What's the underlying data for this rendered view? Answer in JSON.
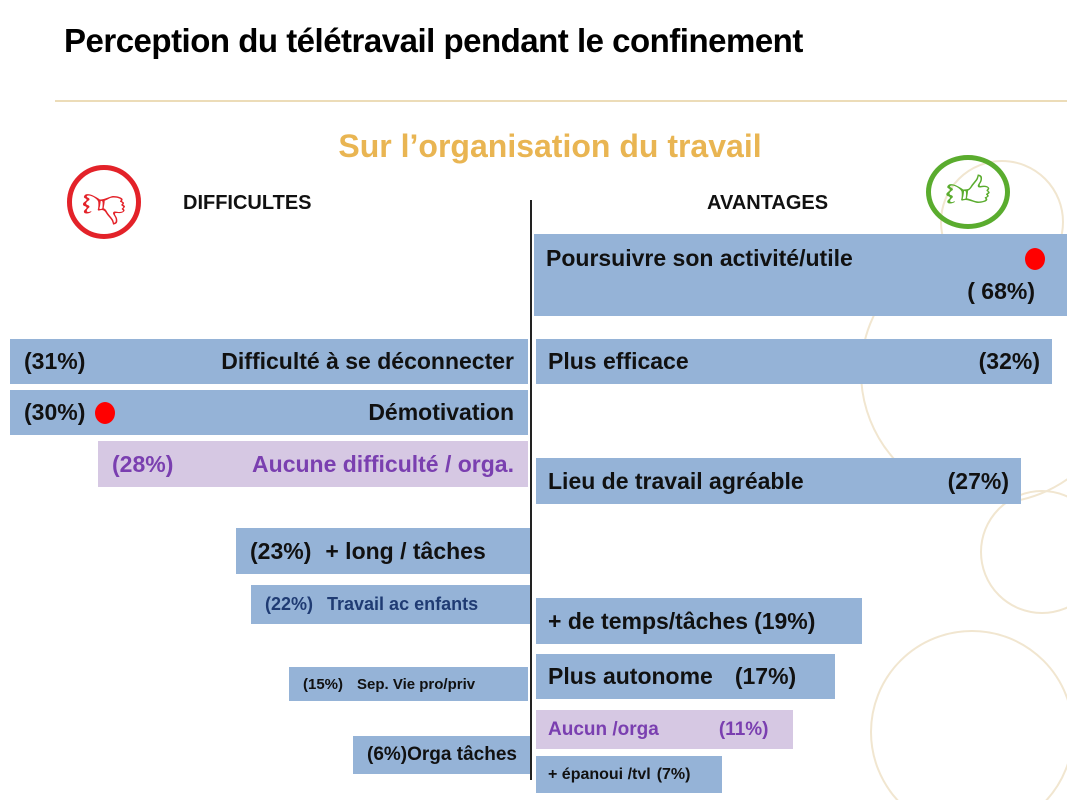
{
  "title": "Perception du télétravail pendant le confinement",
  "subtitle": "Sur l’organisation du travail",
  "colors": {
    "bar": "#95b3d7",
    "bar_none": "#d6c8e3",
    "text_none": "#7a3fb0",
    "accent": "#e9b552",
    "negative": "#e32229",
    "positive": "#5aac2e"
  },
  "chart_data": {
    "type": "bar",
    "title": "Sur l’organisation du travail",
    "left_header": "DIFFICULTES",
    "right_header": "AVANTAGES",
    "difficultes": [
      {
        "label": "Difficulté à se déconnecter",
        "pct_text": "(31%)",
        "value": 31
      },
      {
        "label": "Démotivation",
        "pct_text": "(30%)",
        "value": 30,
        "marked": true
      },
      {
        "label": "Aucune difficulté / orga.",
        "pct_text": "(28%)",
        "value": 28,
        "none": true
      },
      {
        "label": "+ long / tâches",
        "pct_text": "(23%)",
        "value": 23
      },
      {
        "label": "Travail ac enfants",
        "pct_text": "(22%)",
        "value": 22
      },
      {
        "label": "Sep. Vie pro/priv",
        "pct_text": "(15%)",
        "value": 15
      },
      {
        "label": "Orga tâches",
        "pct_text": "(6%)",
        "value": 6
      }
    ],
    "avantages": [
      {
        "label": "Poursuivre son activité/utile",
        "pct_text": "( 68%)",
        "value": 68,
        "marked": true
      },
      {
        "label": "Plus efficace",
        "pct_text": "(32%)",
        "value": 32
      },
      {
        "label": "Lieu de travail agréable",
        "pct_text": "(27%)",
        "value": 27
      },
      {
        "label": "+ de temps/tâches",
        "pct_text": "(19%)",
        "value": 19
      },
      {
        "label": "Plus autonome",
        "pct_text": "(17%)",
        "value": 17
      },
      {
        "label": "Aucun /orga",
        "pct_text": "(11%)",
        "value": 11,
        "none": true
      },
      {
        "label": "+ épanoui /tvl",
        "pct_text": "(7%)",
        "value": 7
      }
    ]
  }
}
